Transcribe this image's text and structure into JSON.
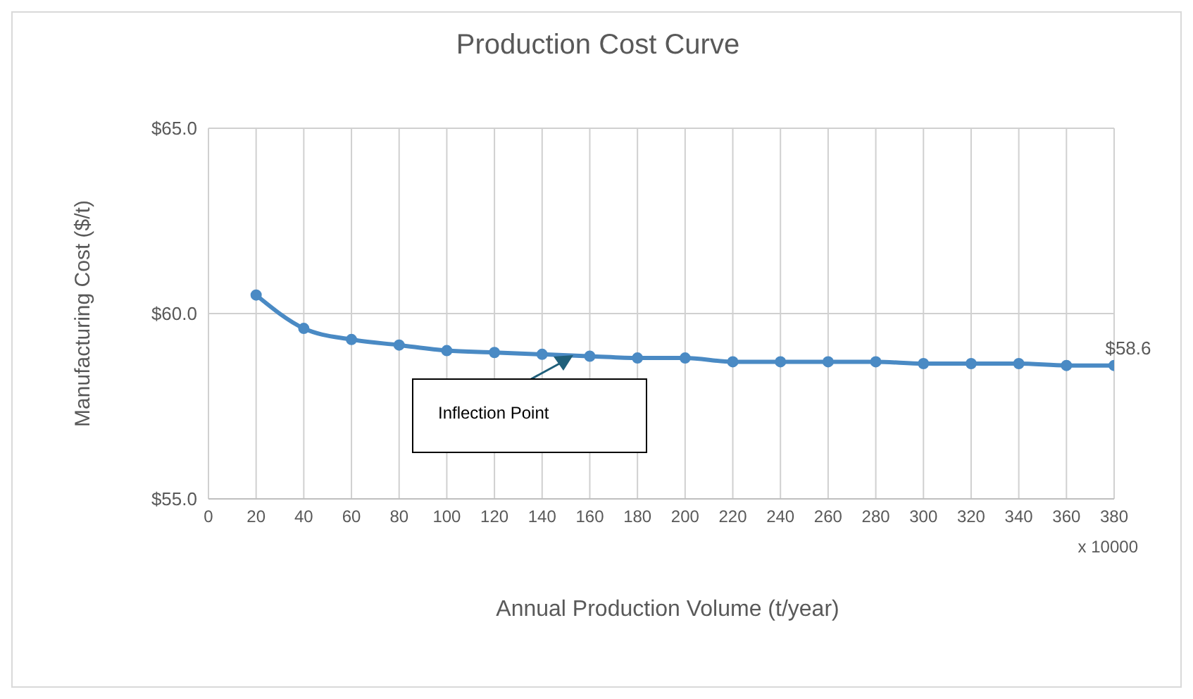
{
  "chart_data": {
    "type": "line",
    "title": "Production Cost Curve",
    "xlabel": "Annual Production Volume (t/year)",
    "ylabel": "Manufacturing Cost ($/t)",
    "x": [
      20,
      40,
      60,
      80,
      100,
      120,
      140,
      160,
      180,
      200,
      220,
      240,
      260,
      280,
      300,
      320,
      340,
      360,
      380
    ],
    "series": [
      {
        "color": "#4a8ac4",
        "values": [
          60.5,
          59.6,
          59.3,
          59.15,
          59.0,
          58.95,
          58.9,
          58.85,
          58.8,
          58.8,
          58.7,
          58.7,
          58.7,
          58.7,
          58.65,
          58.65,
          58.65,
          58.6,
          58.6
        ],
        "value_labels": [
          null,
          null,
          null,
          null,
          null,
          null,
          null,
          null,
          null,
          null,
          null,
          null,
          null,
          null,
          null,
          null,
          null,
          null,
          "$58.6"
        ]
      }
    ],
    "xlim": [
      0,
      380
    ],
    "xticks": [
      0,
      20,
      40,
      60,
      80,
      100,
      120,
      140,
      160,
      180,
      200,
      220,
      240,
      260,
      280,
      300,
      320,
      340,
      360,
      380
    ],
    "ylim": [
      55,
      65
    ],
    "yticks": [
      {
        "value": 55,
        "label": "$55.0"
      },
      {
        "value": 60,
        "label": "$60.0"
      },
      {
        "value": 65,
        "label": "$65.0"
      }
    ],
    "grid": true,
    "marker": "circle",
    "line_style": "solid",
    "annotations": [
      "Inflection Point",
      "x 10000"
    ]
  }
}
